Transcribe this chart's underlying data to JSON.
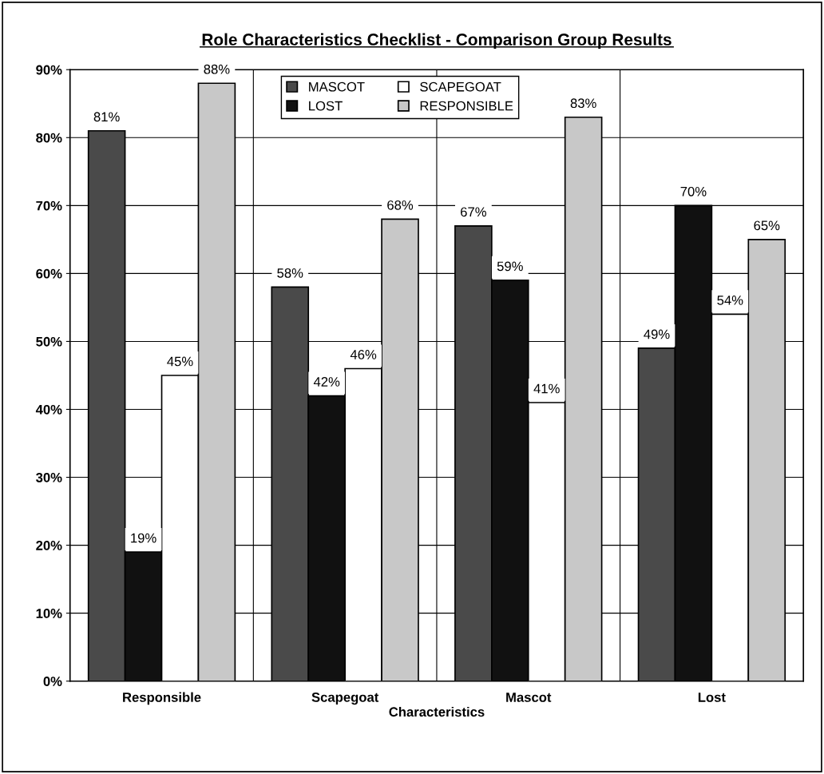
{
  "chart_data": {
    "type": "bar",
    "title": "Role Characteristics Checklist - Comparison Group Results",
    "xlabel": "Characteristics",
    "categories": [
      "Responsible",
      "Scapegoat",
      "Mascot",
      "Lost"
    ],
    "series": [
      {
        "name": "MASCOT",
        "color": "#4a4a4a",
        "values": [
          81,
          58,
          67,
          49
        ],
        "value_labels": [
          "81%",
          "58%",
          "67%",
          "49%"
        ]
      },
      {
        "name": "LOST",
        "color": "#111111",
        "values": [
          19,
          42,
          59,
          70
        ],
        "value_labels": [
          "19%",
          "42%",
          "59%",
          "70%"
        ]
      },
      {
        "name": "SCAPEGOAT",
        "color": "#ffffff",
        "values": [
          45,
          46,
          41,
          54
        ],
        "value_labels": [
          "45%",
          "46%",
          "41%",
          "54%"
        ]
      },
      {
        "name": "RESPONSIBLE",
        "color": "#c8c8c8",
        "values": [
          88,
          68,
          83,
          65
        ],
        "value_labels": [
          "88%",
          "68%",
          "83%",
          "65%"
        ]
      }
    ],
    "ylim": [
      0,
      90
    ],
    "yticks": [
      {
        "value": 0,
        "label": "0%"
      },
      {
        "value": 10,
        "label": "10%"
      },
      {
        "value": 20,
        "label": "20%"
      },
      {
        "value": 30,
        "label": "30%"
      },
      {
        "value": 40,
        "label": "40%"
      },
      {
        "value": 50,
        "label": "50%"
      },
      {
        "value": 60,
        "label": "60%"
      },
      {
        "value": 70,
        "label": "70%"
      },
      {
        "value": 80,
        "label": "80%"
      },
      {
        "value": 90,
        "label": "90%"
      }
    ],
    "grid": true,
    "legend": "top"
  }
}
